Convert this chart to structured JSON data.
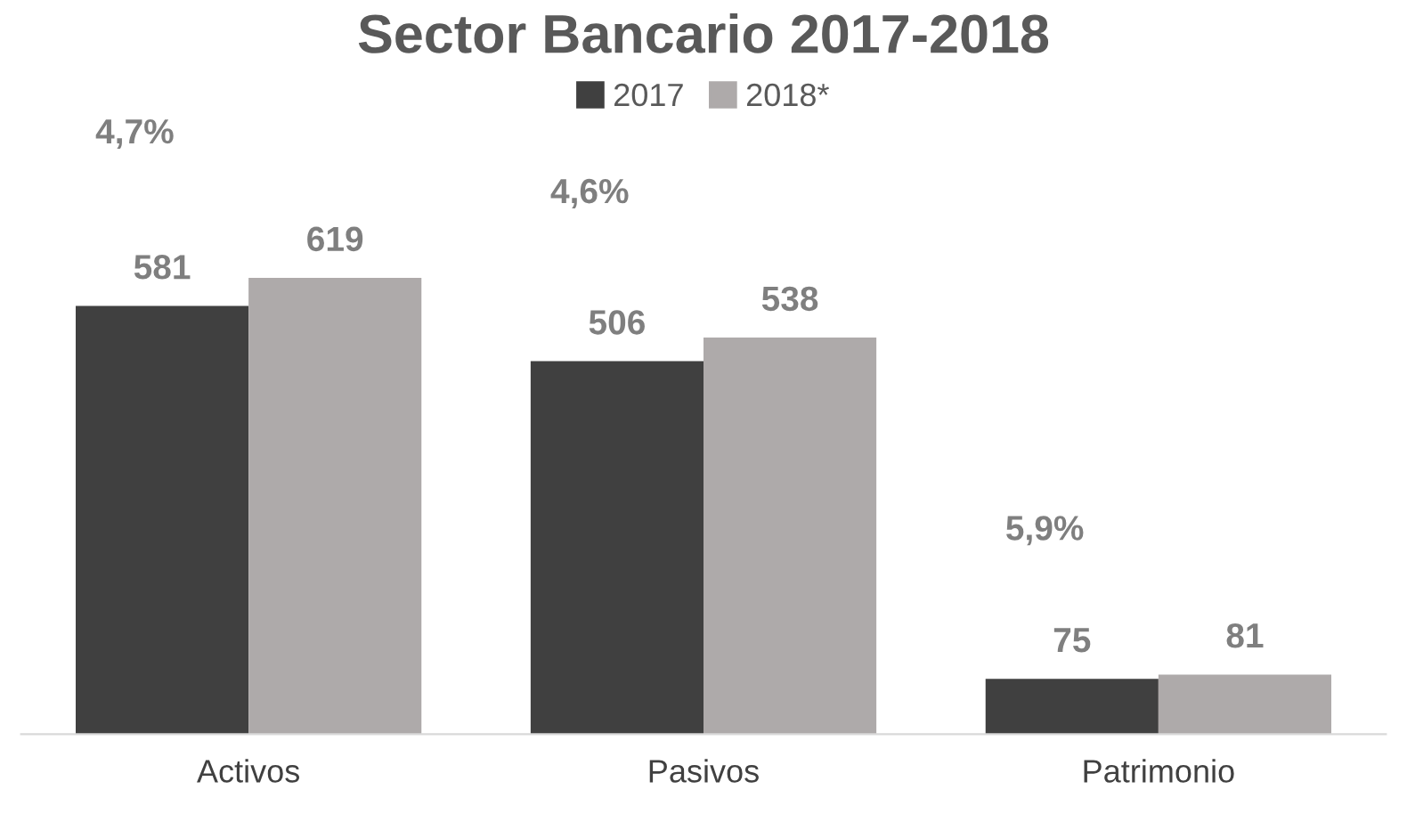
{
  "chart_data": {
    "type": "bar",
    "title": "Sector Bancario 2017-2018",
    "categories": [
      "Activos",
      "Pasivos",
      "Patrimonio"
    ],
    "series": [
      {
        "name": "2017",
        "color": "#404040",
        "values": [
          581,
          506,
          75
        ]
      },
      {
        "name": "2018*",
        "color": "#aeaaaa",
        "values": [
          619,
          538,
          81
        ]
      }
    ],
    "data_labels": true,
    "annotations": [
      "4,7%",
      "4,6%",
      "5,9%"
    ],
    "legend": "top"
  }
}
